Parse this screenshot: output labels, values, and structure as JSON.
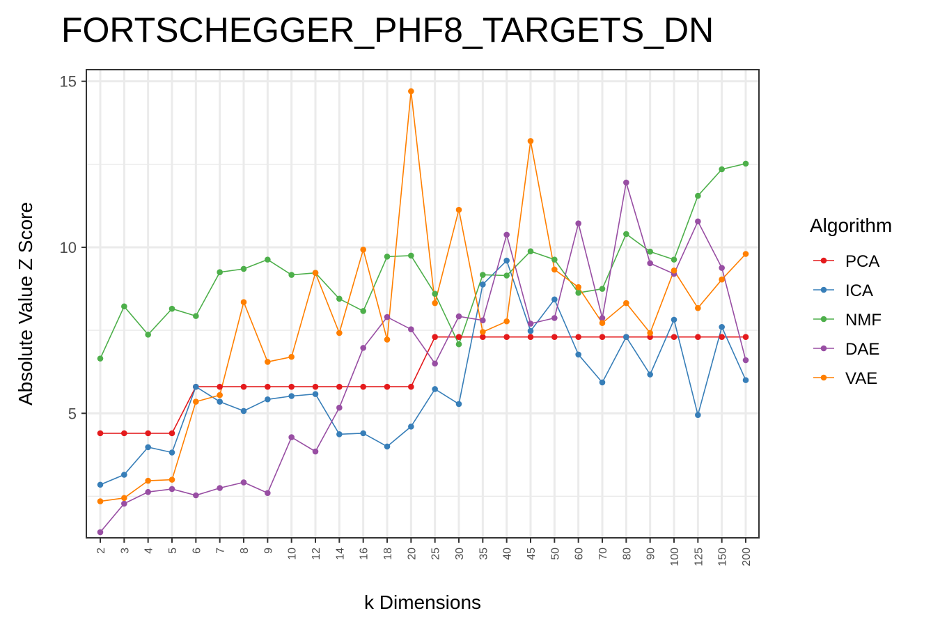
{
  "chart_data": {
    "type": "line",
    "title": "FORTSCHEGGER_PHF8_TARGETS_DN",
    "xlabel": "k Dimensions",
    "ylabel": "Absolute Value Z Score",
    "categories": [
      "2",
      "3",
      "4",
      "5",
      "6",
      "7",
      "8",
      "9",
      "10",
      "12",
      "14",
      "16",
      "18",
      "20",
      "25",
      "30",
      "35",
      "40",
      "45",
      "50",
      "60",
      "70",
      "80",
      "90",
      "100",
      "125",
      "150",
      "200"
    ],
    "ylim": [
      1.25,
      15.35
    ],
    "yticks": [
      5,
      10,
      15
    ],
    "legend": {
      "title": "Algorithm",
      "position": "right"
    },
    "grid": true,
    "series": [
      {
        "name": "PCA",
        "color": "#e41a1c",
        "values": [
          4.4,
          4.4,
          4.4,
          4.4,
          5.8,
          5.8,
          5.8,
          5.8,
          5.8,
          5.8,
          5.8,
          5.8,
          5.8,
          5.8,
          7.3,
          7.3,
          7.3,
          7.3,
          7.3,
          7.3,
          7.3,
          7.3,
          7.3,
          7.3,
          7.3,
          7.3,
          7.3,
          7.3
        ]
      },
      {
        "name": "ICA",
        "color": "#377eb8",
        "values": [
          2.85,
          3.15,
          3.98,
          3.82,
          5.8,
          5.35,
          5.07,
          5.42,
          5.52,
          5.58,
          4.37,
          4.4,
          4.0,
          4.6,
          5.73,
          5.28,
          8.88,
          9.6,
          7.48,
          8.43,
          6.77,
          5.93,
          7.3,
          6.17,
          7.82,
          4.95,
          7.6,
          6.0
        ]
      },
      {
        "name": "NMF",
        "color": "#4daf4a",
        "values": [
          6.65,
          8.22,
          7.37,
          8.15,
          7.93,
          9.25,
          9.35,
          9.63,
          9.17,
          9.23,
          8.45,
          8.08,
          9.72,
          9.75,
          8.6,
          7.08,
          9.17,
          9.15,
          9.88,
          9.63,
          8.63,
          8.75,
          10.4,
          9.87,
          9.63,
          11.55,
          12.35,
          12.52
        ]
      },
      {
        "name": "DAE",
        "color": "#984ea3",
        "values": [
          1.42,
          2.28,
          2.63,
          2.72,
          2.53,
          2.75,
          2.92,
          2.6,
          4.28,
          3.85,
          5.17,
          6.97,
          7.9,
          7.53,
          6.5,
          7.92,
          7.8,
          10.38,
          7.7,
          7.87,
          10.72,
          7.87,
          11.95,
          9.52,
          9.2,
          10.78,
          9.38,
          6.6
        ]
      },
      {
        "name": "VAE",
        "color": "#ff7f00",
        "values": [
          2.35,
          2.45,
          2.97,
          3.0,
          5.35,
          5.55,
          8.35,
          6.55,
          6.7,
          9.23,
          7.42,
          9.93,
          7.22,
          14.7,
          8.32,
          11.13,
          7.45,
          7.77,
          13.2,
          9.33,
          8.8,
          7.72,
          8.32,
          7.42,
          9.3,
          8.17,
          9.03,
          9.8
        ]
      }
    ]
  }
}
